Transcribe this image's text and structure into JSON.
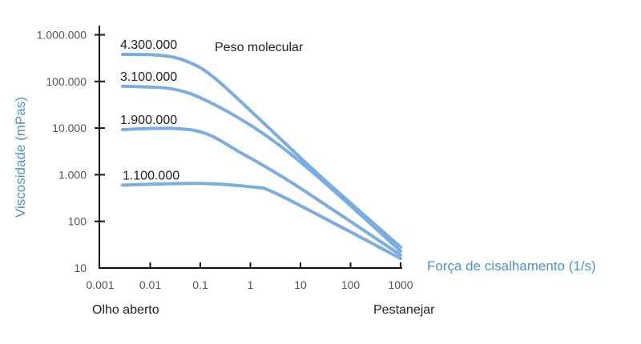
{
  "chart_data": {
    "type": "line",
    "xlabel": "Força de cisalhamento (1/s)",
    "ylabel": "Viscosidade (mPas)",
    "x_scale": "log",
    "y_scale": "log",
    "xlim": [
      0.001,
      1000
    ],
    "ylim": [
      10,
      1000000
    ],
    "x_ticks": [
      "0.001",
      "0.01",
      "0.1",
      "1",
      "10",
      "100",
      "1000"
    ],
    "y_ticks": [
      "10",
      "100",
      "1.000",
      "10.000",
      "100.000",
      "1.000.000"
    ],
    "grid": false,
    "line_color": "#7aaee0",
    "axis_label_color": "#4a92cc",
    "legend_title": "Peso molecular",
    "annotations": {
      "left": "Olho aberto",
      "right": "Pestanejar"
    },
    "series": [
      {
        "name": "4.300.000",
        "x": [
          0.0028,
          0.016,
          0.054,
          0.19,
          2.1,
          25,
          1000
        ],
        "y": [
          380000,
          363000,
          269000,
          120000,
          11200,
          930,
          28
        ]
      },
      {
        "name": "3.100.000",
        "x": [
          0.0028,
          0.03,
          0.19,
          2.1,
          25,
          1000
        ],
        "y": [
          79000,
          68000,
          32000,
          6800,
          810,
          23
        ]
      },
      {
        "name": "1.900.000",
        "x": [
          0.0028,
          0.03,
          0.13,
          0.63,
          7.4,
          1000
        ],
        "y": [
          9300,
          9800,
          7600,
          3000,
          630,
          19
        ]
      },
      {
        "name": "1.100.000",
        "x": [
          0.0028,
          0.1,
          1.2,
          2.75,
          25,
          1000
        ],
        "y": [
          600,
          650,
          540,
          430,
          130,
          16
        ]
      }
    ]
  }
}
